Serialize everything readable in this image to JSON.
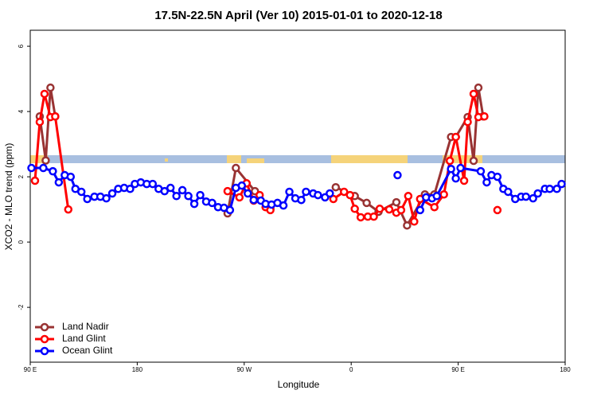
{
  "chart_data": {
    "type": "line",
    "title": "17.5N-22.5N April (Ver 10)   2015-01-01 to 2020-12-18",
    "x_label": "Longitude",
    "y_label": "XCO2 - MLO trend (ppm)",
    "xlim": [
      90,
      540
    ],
    "xticks": [
      {
        "value": 90,
        "label": "90 E"
      },
      180,
      {
        "value": 270,
        "label": "90 W"
      },
      {
        "value": 360,
        "label": "0"
      },
      {
        "value": 450,
        "label": "90 E"
      },
      {
        "value": 540,
        "label": "180"
      }
    ],
    "ylim": [
      -3.68,
      6.49
    ],
    "yticks": [
      -2,
      0,
      2,
      4,
      6
    ],
    "legend": "bottomleft",
    "series": [
      {
        "name": "Land Nadir",
        "color": "#993333",
        "x": [
          98,
          103,
          107,
          111,
          180,
          256,
          263,
          279,
          292,
          320,
          347,
          363,
          373,
          383,
          398,
          407,
          422,
          430,
          444,
          448,
          458,
          463,
          467,
          471
        ],
        "values": [
          3.85,
          2.5,
          4.73,
          3.85,
          null,
          0.88,
          2.27,
          1.56,
          1.02,
          null,
          1.68,
          1.41,
          1.2,
          0.93,
          1.22,
          0.51,
          1.46,
          1.46,
          3.22,
          3.22,
          3.83,
          2.49,
          4.73,
          3.85
        ]
      },
      {
        "name": "Land Glint",
        "color": "#ff0000",
        "x": [
          94,
          98,
          102,
          107,
          111,
          122,
          180,
          256,
          266,
          272,
          278,
          283,
          288,
          292,
          320,
          345,
          354,
          359,
          363,
          368,
          374,
          379,
          384,
          392,
          398,
          402,
          408,
          413,
          418,
          430,
          438,
          443,
          448,
          455,
          458,
          463,
          467,
          472,
          476,
          483
        ],
        "values": [
          1.88,
          3.68,
          4.54,
          3.83,
          3.85,
          1.0,
          null,
          1.56,
          1.37,
          1.8,
          1.27,
          1.44,
          1.07,
          0.98,
          null,
          1.32,
          1.54,
          1.44,
          1.02,
          0.76,
          0.78,
          0.78,
          1.02,
          1.0,
          0.9,
          0.98,
          1.41,
          0.63,
          1.32,
          1.07,
          1.46,
          2.49,
          3.22,
          1.88,
          3.68,
          4.54,
          3.83,
          3.85,
          null,
          0.98
        ]
      },
      {
        "name": "Ocean Glint",
        "color": "#0000ff",
        "x": [
          91,
          101,
          109,
          114,
          119,
          124,
          128,
          133,
          138,
          144,
          149,
          154,
          159,
          164,
          169,
          174,
          178,
          183,
          188,
          193,
          198,
          203,
          208,
          213,
          218,
          223,
          228,
          233,
          238,
          243,
          248,
          253,
          258,
          263,
          268,
          273,
          278,
          284,
          288,
          293,
          298,
          303,
          308,
          313,
          318,
          322,
          328,
          332,
          338,
          342,
          380,
          399,
          410,
          418,
          423,
          428,
          432,
          444,
          448,
          452,
          469,
          474,
          478,
          483,
          488,
          492,
          498,
          503,
          507,
          513,
          517,
          523,
          527,
          533,
          537
        ],
        "values": [
          2.27,
          2.27,
          2.17,
          1.83,
          2.05,
          2.0,
          1.63,
          1.54,
          1.32,
          1.39,
          1.39,
          1.34,
          1.49,
          1.63,
          1.66,
          1.63,
          1.78,
          1.83,
          1.78,
          1.78,
          1.63,
          1.56,
          1.66,
          1.41,
          1.59,
          1.41,
          1.17,
          1.44,
          1.24,
          1.2,
          1.07,
          1.05,
          0.98,
          1.66,
          1.73,
          1.49,
          1.29,
          1.27,
          1.17,
          1.15,
          1.2,
          1.12,
          1.54,
          1.34,
          1.29,
          1.54,
          1.49,
          1.44,
          1.37,
          1.49,
          null,
          2.05,
          null,
          0.98,
          1.37,
          1.34,
          1.41,
          2.24,
          1.95,
          2.27,
          2.17,
          1.83,
          2.05,
          2.0,
          1.63,
          1.54,
          1.32,
          1.39,
          1.39,
          1.34,
          1.49,
          1.63,
          1.63,
          1.63,
          1.78
        ]
      }
    ]
  }
}
